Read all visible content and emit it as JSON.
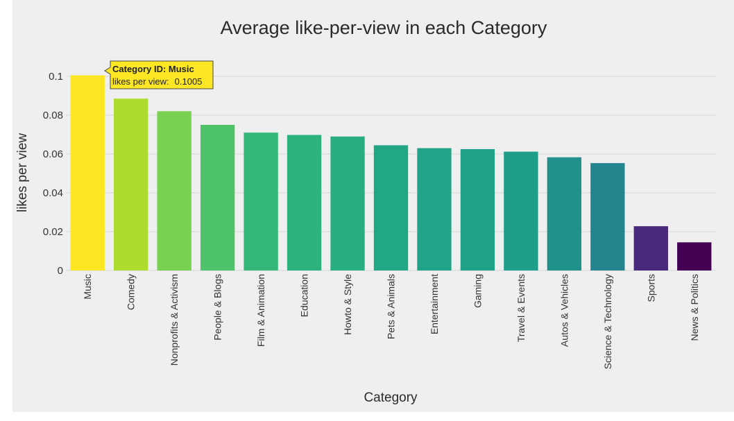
{
  "chart_data": {
    "type": "bar",
    "title": "Average like-per-view in each Category",
    "xlabel": "Category",
    "ylabel": "likes per view",
    "ylim": [
      0,
      0.1
    ],
    "yticks": [
      0,
      0.02,
      0.04,
      0.06,
      0.08,
      0.1
    ],
    "ytick_labels": [
      "0",
      "0.02",
      "0.04",
      "0.06",
      "0.08",
      "0.1"
    ],
    "grid": true,
    "categories": [
      "Music",
      "Comedy",
      "Nonprofits & Activism",
      "People & Blogs",
      "Film & Animation",
      "Education",
      "Howto & Style",
      "Pets & Animals",
      "Entertainment",
      "Gaming",
      "Travel & Events",
      "Autos & Vehicles",
      "Science & Technology",
      "Sports",
      "News & Politics"
    ],
    "values": [
      0.1005,
      0.0885,
      0.082,
      0.075,
      0.071,
      0.0698,
      0.069,
      0.0645,
      0.063,
      0.0625,
      0.0612,
      0.0583,
      0.0553,
      0.0228,
      0.0145
    ],
    "colors": [
      "#fde725",
      "#addc30",
      "#78d151",
      "#4fc369",
      "#35b779",
      "#2db27d",
      "#29af7f",
      "#22a785",
      "#20a386",
      "#1fa088",
      "#1f9e89",
      "#21918c",
      "#25858e",
      "#472a7a",
      "#440154"
    ],
    "tooltip": {
      "category_prefix": "Category ID: ",
      "category": "Music",
      "value_label": "likes per view:",
      "value": "0.1005"
    }
  }
}
